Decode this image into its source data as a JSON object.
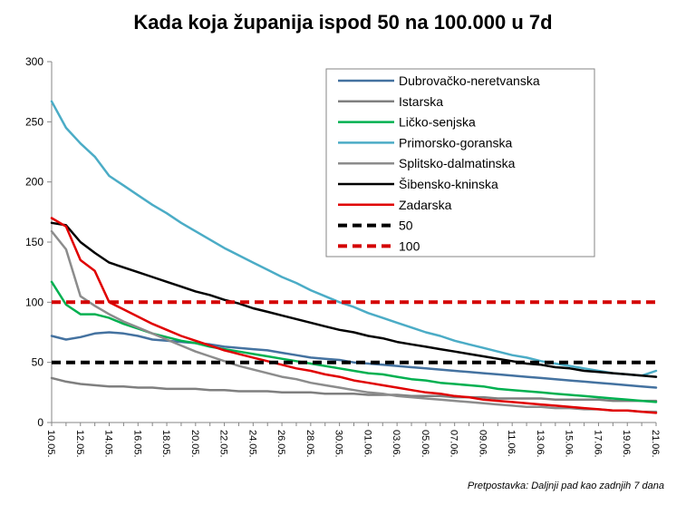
{
  "chart_data": {
    "type": "line",
    "title": "Kada koja županija ispod 50 na 100.000 u 7d",
    "annotation": "Pretpostavka:  Daljnji pad kao zadnjih 7 dana",
    "xlabel": "",
    "ylabel": "",
    "ylim": [
      0,
      300
    ],
    "yticks": [
      0,
      50,
      100,
      150,
      200,
      250,
      300
    ],
    "grid": false,
    "legend_position": "top-right",
    "x_tick_labels": [
      "10.05.",
      "12.05.",
      "14.05.",
      "16.05.",
      "18.05.",
      "20.05.",
      "22.05.",
      "24.05.",
      "26.05.",
      "28.05.",
      "30.05.",
      "01.06.",
      "03.06.",
      "05.06.",
      "07.06.",
      "09.06.",
      "11.06.",
      "13.06.",
      "15.06.",
      "17.06.",
      "19.06.",
      "21.06."
    ],
    "x_count": 43,
    "series": [
      {
        "name": "Dubrovačko-neretvanska",
        "color": "#4472a0",
        "dash": false,
        "width": 2.5,
        "values": [
          72,
          69,
          71,
          74,
          75,
          74,
          72,
          69,
          68,
          67,
          66,
          65,
          63,
          62,
          61,
          60,
          58,
          56,
          54,
          53,
          52,
          50,
          49,
          48,
          47,
          46,
          45,
          44,
          43,
          42,
          41,
          40,
          39,
          38,
          37,
          36,
          35,
          34,
          33,
          32,
          31,
          30,
          29
        ]
      },
      {
        "name": "Istarska",
        "color": "#7f7f7f",
        "dash": false,
        "width": 2.5,
        "values": [
          37,
          34,
          32,
          31,
          30,
          30,
          29,
          29,
          28,
          28,
          28,
          27,
          27,
          26,
          26,
          26,
          25,
          25,
          25,
          24,
          24,
          24,
          23,
          23,
          23,
          22,
          22,
          22,
          21,
          21,
          21,
          20,
          20,
          20,
          20,
          19,
          19,
          19,
          19,
          18,
          18,
          18,
          18
        ]
      },
      {
        "name": "Ličko-senjska",
        "color": "#00b050",
        "dash": false,
        "width": 2.5,
        "values": [
          117,
          98,
          90,
          90,
          87,
          82,
          78,
          74,
          71,
          68,
          66,
          63,
          61,
          59,
          57,
          55,
          53,
          51,
          49,
          47,
          45,
          43,
          41,
          40,
          38,
          36,
          35,
          33,
          32,
          31,
          30,
          28,
          27,
          26,
          25,
          24,
          23,
          22,
          21,
          20,
          19,
          18,
          17
        ]
      },
      {
        "name": "Primorsko-goranska",
        "color": "#4bacc6",
        "dash": false,
        "width": 2.5,
        "values": [
          267,
          245,
          232,
          221,
          205,
          197,
          189,
          181,
          174,
          166,
          159,
          152,
          145,
          139,
          133,
          127,
          121,
          116,
          110,
          105,
          100,
          96,
          91,
          87,
          83,
          79,
          75,
          72,
          68,
          65,
          62,
          59,
          56,
          54,
          51,
          49,
          47,
          45,
          43,
          41,
          40,
          39,
          43
        ]
      },
      {
        "name": "Splitsko-dalmatinska",
        "color": "#8c8c8c",
        "dash": false,
        "width": 2.5,
        "values": [
          159,
          144,
          105,
          97,
          90,
          84,
          79,
          74,
          69,
          64,
          59,
          55,
          51,
          47,
          44,
          41,
          38,
          36,
          33,
          31,
          29,
          27,
          25,
          24,
          22,
          21,
          20,
          19,
          18,
          17,
          16,
          15,
          14,
          13,
          13,
          12,
          12,
          11,
          11,
          10,
          10,
          9,
          9
        ]
      },
      {
        "name": "Šibensko-kninska",
        "color": "#000000",
        "dash": false,
        "width": 2.5,
        "values": [
          166,
          164,
          150,
          141,
          133,
          129,
          125,
          121,
          117,
          113,
          109,
          106,
          102,
          99,
          95,
          92,
          89,
          86,
          83,
          80,
          77,
          75,
          72,
          70,
          67,
          65,
          63,
          61,
          59,
          57,
          55,
          53,
          51,
          49,
          48,
          46,
          45,
          43,
          42,
          41,
          40,
          39,
          38
        ]
      },
      {
        "name": "Zadarska",
        "color": "#e00000",
        "dash": false,
        "width": 2.5,
        "values": [
          170,
          163,
          135,
          126,
          100,
          94,
          88,
          82,
          77,
          72,
          68,
          64,
          60,
          57,
          54,
          51,
          48,
          45,
          43,
          40,
          38,
          35,
          33,
          31,
          29,
          27,
          25,
          24,
          22,
          21,
          19,
          18,
          17,
          16,
          15,
          14,
          13,
          12,
          11,
          10,
          10,
          9,
          8
        ]
      },
      {
        "name": "50",
        "color": "#000000",
        "dash": true,
        "width": 4,
        "values": [
          50,
          50,
          50,
          50,
          50,
          50,
          50,
          50,
          50,
          50,
          50,
          50,
          50,
          50,
          50,
          50,
          50,
          50,
          50,
          50,
          50,
          50,
          50,
          50,
          50,
          50,
          50,
          50,
          50,
          50,
          50,
          50,
          50,
          50,
          50,
          50,
          50,
          50,
          50,
          50,
          50,
          50,
          50
        ]
      },
      {
        "name": "100",
        "color": "#d40000",
        "dash": true,
        "width": 4,
        "values": [
          100,
          100,
          100,
          100,
          100,
          100,
          100,
          100,
          100,
          100,
          100,
          100,
          100,
          100,
          100,
          100,
          100,
          100,
          100,
          100,
          100,
          100,
          100,
          100,
          100,
          100,
          100,
          100,
          100,
          100,
          100,
          100,
          100,
          100,
          100,
          100,
          100,
          100,
          100,
          100,
          100,
          100,
          100
        ]
      }
    ]
  }
}
